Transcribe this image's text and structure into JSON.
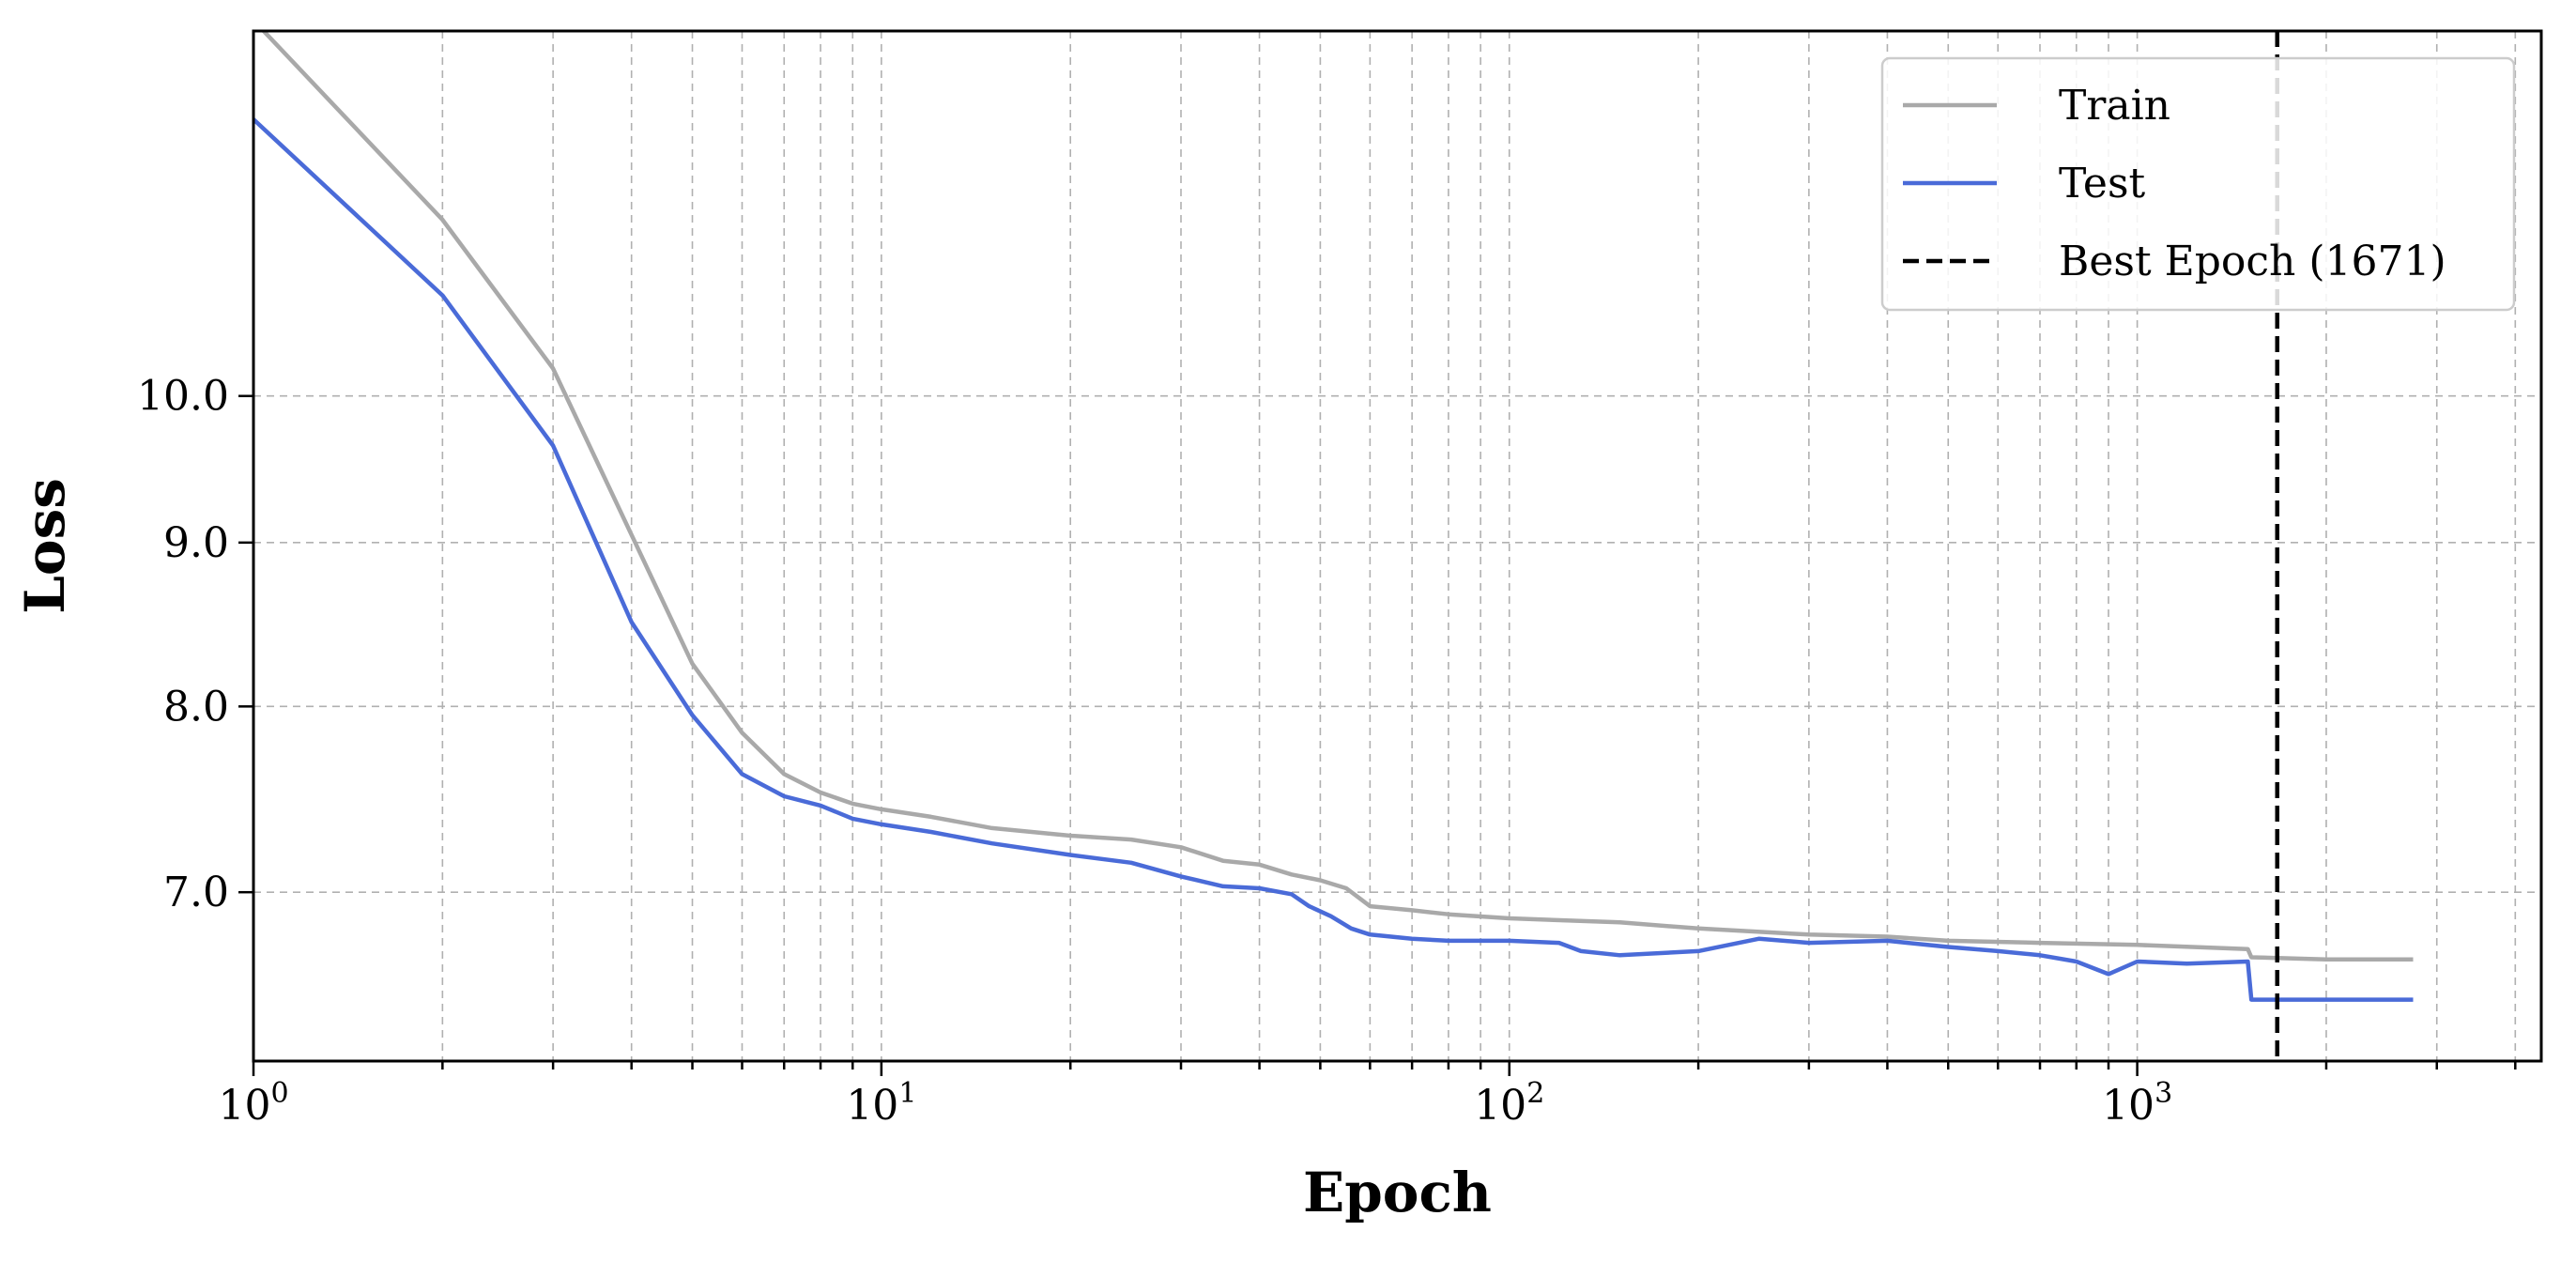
{
  "chart_data": {
    "type": "line",
    "xlabel": "Epoch",
    "ylabel": "Loss",
    "x_scale": "log",
    "y_scale": "log",
    "xlim": [
      1,
      4400
    ],
    "ylim": [
      6.2,
      13.0
    ],
    "grid": true,
    "legend_position": "top-right",
    "x_ticks": [
      {
        "value": 1,
        "mantissa": "10",
        "exponent": "0"
      },
      {
        "value": 10,
        "mantissa": "10",
        "exponent": "1"
      },
      {
        "value": 100,
        "mantissa": "10",
        "exponent": "2"
      },
      {
        "value": 1000,
        "mantissa": "10",
        "exponent": "3"
      }
    ],
    "y_ticks": [
      {
        "value": 7.0,
        "label": "7.0"
      },
      {
        "value": 8.0,
        "label": "8.0"
      },
      {
        "value": 9.0,
        "label": "9.0"
      },
      {
        "value": 10.0,
        "label": "10.0"
      }
    ],
    "series": [
      {
        "name": "Train",
        "color": "#a9a9a9",
        "points": [
          [
            1,
            13.1
          ],
          [
            2,
            11.35
          ],
          [
            3,
            10.2
          ],
          [
            4,
            9.05
          ],
          [
            5,
            8.25
          ],
          [
            6,
            7.85
          ],
          [
            7,
            7.62
          ],
          [
            8,
            7.52
          ],
          [
            9,
            7.46
          ],
          [
            10,
            7.43
          ],
          [
            12,
            7.39
          ],
          [
            15,
            7.33
          ],
          [
            20,
            7.29
          ],
          [
            25,
            7.27
          ],
          [
            30,
            7.23
          ],
          [
            35,
            7.16
          ],
          [
            40,
            7.14
          ],
          [
            45,
            7.09
          ],
          [
            50,
            7.06
          ],
          [
            55,
            7.02
          ],
          [
            60,
            6.93
          ],
          [
            70,
            6.91
          ],
          [
            80,
            6.89
          ],
          [
            100,
            6.87
          ],
          [
            150,
            6.85
          ],
          [
            200,
            6.82
          ],
          [
            300,
            6.79
          ],
          [
            400,
            6.78
          ],
          [
            500,
            6.76
          ],
          [
            700,
            6.75
          ],
          [
            1000,
            6.74
          ],
          [
            1500,
            6.72
          ],
          [
            1520,
            6.68
          ],
          [
            2000,
            6.67
          ],
          [
            2750,
            6.67
          ]
        ]
      },
      {
        "name": "Test",
        "color": "#4a6bd8",
        "points": [
          [
            1,
            12.2
          ],
          [
            2,
            10.75
          ],
          [
            3,
            9.65
          ],
          [
            4,
            8.5
          ],
          [
            5,
            7.95
          ],
          [
            6,
            7.62
          ],
          [
            7,
            7.5
          ],
          [
            8,
            7.45
          ],
          [
            9,
            7.38
          ],
          [
            10,
            7.35
          ],
          [
            12,
            7.31
          ],
          [
            15,
            7.25
          ],
          [
            20,
            7.19
          ],
          [
            25,
            7.15
          ],
          [
            30,
            7.08
          ],
          [
            35,
            7.03
          ],
          [
            40,
            7.02
          ],
          [
            45,
            6.99
          ],
          [
            48,
            6.93
          ],
          [
            52,
            6.88
          ],
          [
            56,
            6.82
          ],
          [
            60,
            6.79
          ],
          [
            70,
            6.77
          ],
          [
            80,
            6.76
          ],
          [
            100,
            6.76
          ],
          [
            120,
            6.75
          ],
          [
            130,
            6.71
          ],
          [
            150,
            6.69
          ],
          [
            200,
            6.71
          ],
          [
            250,
            6.77
          ],
          [
            300,
            6.75
          ],
          [
            400,
            6.76
          ],
          [
            500,
            6.73
          ],
          [
            600,
            6.71
          ],
          [
            700,
            6.69
          ],
          [
            800,
            6.66
          ],
          [
            900,
            6.6
          ],
          [
            1000,
            6.66
          ],
          [
            1200,
            6.65
          ],
          [
            1500,
            6.66
          ],
          [
            1520,
            6.48
          ],
          [
            2000,
            6.48
          ],
          [
            2750,
            6.48
          ]
        ]
      }
    ],
    "vline": {
      "x": 1671,
      "name": "Best Epoch (1671)",
      "color": "#000000",
      "style": "dashed"
    }
  }
}
